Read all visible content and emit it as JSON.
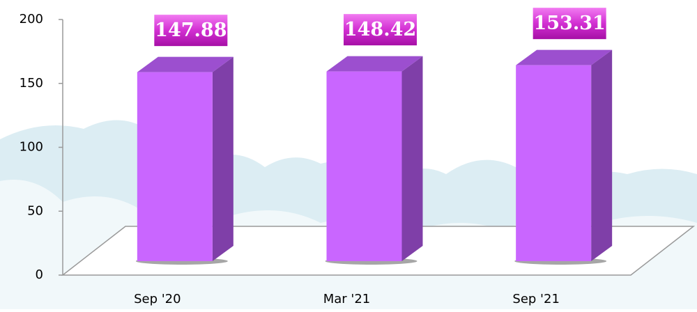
{
  "chart_data": {
    "type": "bar3d",
    "categories": [
      "Sep '20",
      "Mar '21",
      "Sep '21"
    ],
    "values": [
      147.88,
      148.42,
      153.31
    ],
    "color": "#c966ff",
    "ylim": [
      0,
      200
    ],
    "yticks": [
      0,
      50,
      100,
      150,
      200
    ]
  }
}
